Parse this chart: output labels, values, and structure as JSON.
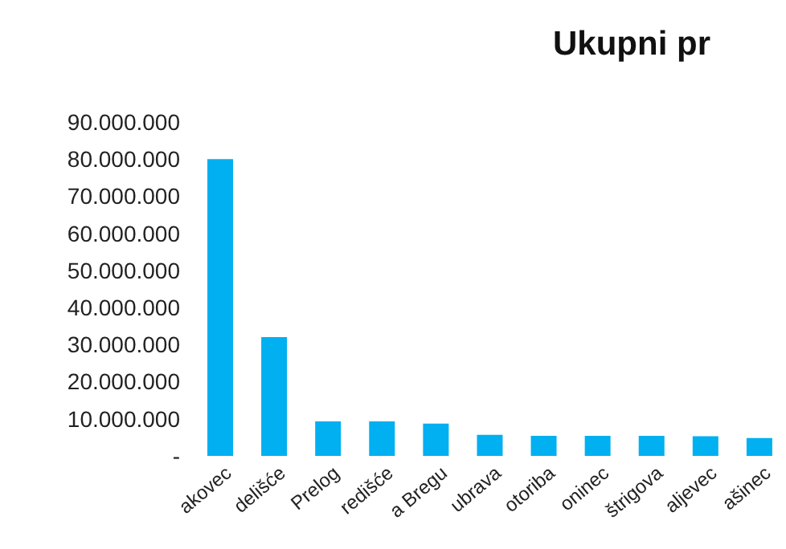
{
  "chart_data": {
    "type": "bar",
    "title": "Ukupni pr",
    "categories": [
      "akovec",
      "delišće",
      "Prelog",
      "redišće",
      "a Bregu",
      "ubrava",
      "otoriba",
      "oninec",
      "štrigova",
      "aljevec",
      "ašinec"
    ],
    "values": [
      80000000,
      32000000,
      9300000,
      9300000,
      8700000,
      5700000,
      5400000,
      5400000,
      5400000,
      5300000,
      4800000
    ],
    "color": "#00b0f0",
    "ylim": [
      0,
      90000000
    ],
    "yticks": [
      {
        "value": 0,
        "label": "-"
      },
      {
        "value": 10000000,
        "label": "10.000.000"
      },
      {
        "value": 20000000,
        "label": "20.000.000"
      },
      {
        "value": 30000000,
        "label": "30.000.000"
      },
      {
        "value": 40000000,
        "label": "40.000.000"
      },
      {
        "value": 50000000,
        "label": "50.000.000"
      },
      {
        "value": 60000000,
        "label": "60.000.000"
      },
      {
        "value": 70000000,
        "label": "70.000.000"
      },
      {
        "value": 80000000,
        "label": "80.000.000"
      },
      {
        "value": 90000000,
        "label": "90.000.000"
      }
    ],
    "grid": false
  }
}
